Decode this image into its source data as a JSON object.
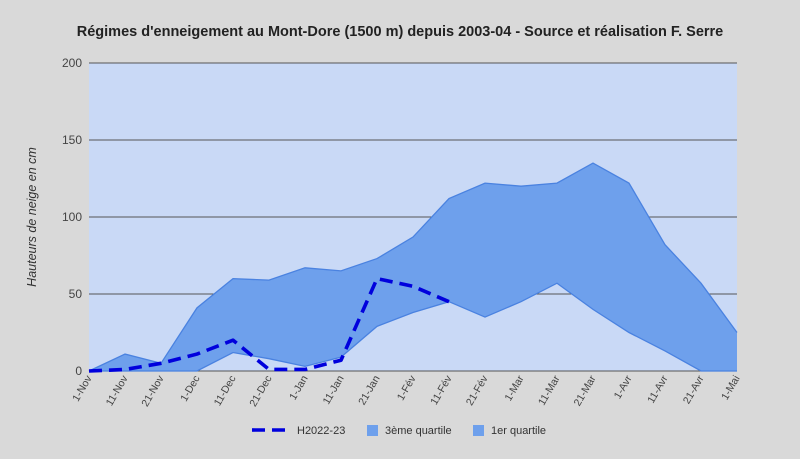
{
  "chart_data": {
    "type": "area",
    "title": "Régimes d'enneigement au Mont-Dore (1500 m) depuis 2003-04 - Source et réalisation F. Serre",
    "xlabel": "",
    "ylabel": "Hauteurs de neige en cm",
    "ylim": [
      0,
      200
    ],
    "yticks": [
      "0",
      "50",
      "100",
      "150",
      "200"
    ],
    "grid": true,
    "legend_position": "bottom",
    "categories": [
      "1-Nov",
      "11-Nov",
      "21-Nov",
      "1-Dec",
      "11-Dec",
      "21-Dec",
      "1-Jan",
      "11-Jan",
      "21-Jan",
      "1-Fév",
      "11-Fév",
      "21-Fév",
      "1-Mar",
      "11-Mar",
      "21-Mar",
      "1-Avr",
      "11-Avr",
      "21-Avr",
      "1-Mai"
    ],
    "series": [
      {
        "name": "H2022-23",
        "style": "dashed-line",
        "color": "#0000dd",
        "values": [
          0,
          1,
          5,
          11,
          20,
          1,
          1,
          7,
          60,
          55,
          45,
          null,
          null,
          null,
          null,
          null,
          null,
          null,
          null
        ]
      },
      {
        "name": "3ème quartile",
        "style": "area",
        "color": "#6ea0ec",
        "values": [
          0,
          11,
          5,
          41,
          60,
          59,
          67,
          65,
          73,
          87,
          112,
          122,
          120,
          122,
          135,
          122,
          82,
          57,
          25
        ]
      },
      {
        "name": "1er quartile",
        "style": "area",
        "color": "#c9d9f6",
        "values": [
          0,
          0,
          0,
          0,
          12,
          8,
          3,
          9,
          29,
          38,
          45,
          35,
          45,
          57,
          40,
          25,
          13,
          0,
          0
        ]
      }
    ],
    "colors": {
      "page_background": "#d9d9d9",
      "plot_background": "#c9d9f6",
      "area_fill": "#6ea0ec",
      "area_stroke": "#4a82e0",
      "gridline": "#555555",
      "line": "#0000dd"
    }
  }
}
